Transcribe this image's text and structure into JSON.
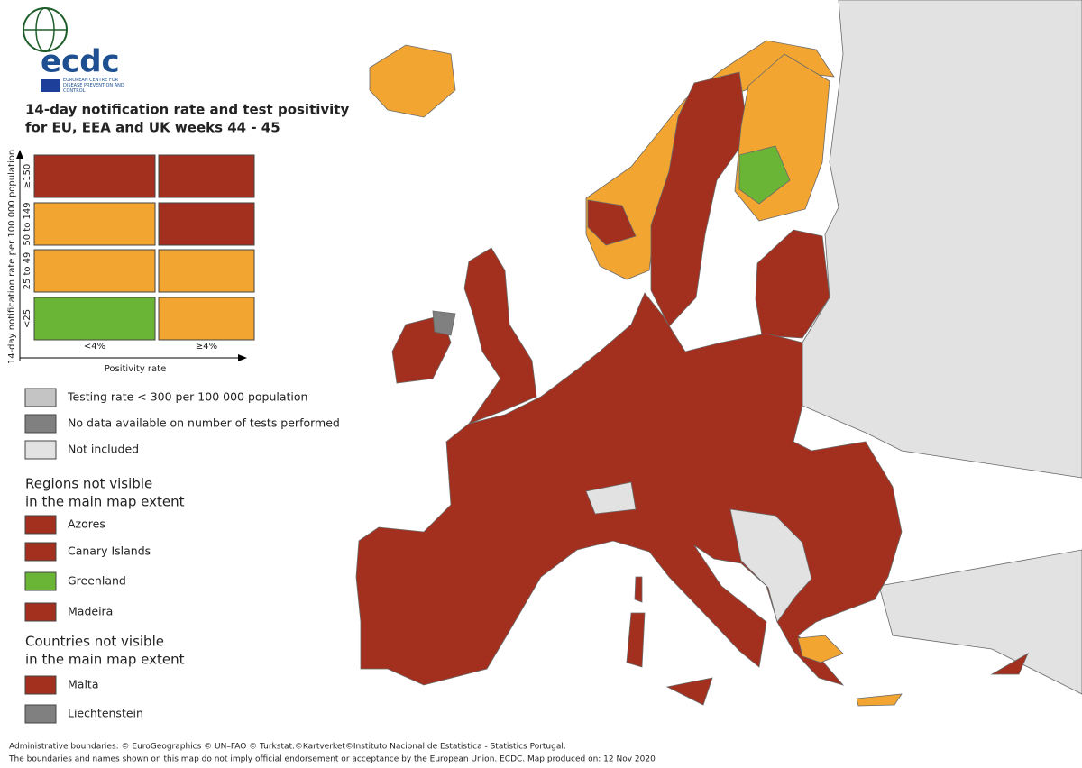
{
  "logo": {
    "text": "ecdc",
    "subtitle": "EUROPEAN CENTRE FOR DISEASE PREVENTION AND CONTROL"
  },
  "title": [
    "14-day notification rate and test positivity",
    "for EU, EEA and UK weeks 44 - 45"
  ],
  "matrix": {
    "y_label": "14-day notification rate per 100 000 population",
    "rows": [
      "≥150",
      "50 to 149",
      "25 to 49",
      "<25"
    ],
    "columns": [
      "<4%",
      "≥4%"
    ],
    "x_label": "Positivity rate",
    "cells": [
      [
        "#a3301f",
        "#a3301f"
      ],
      [
        "#f2a531",
        "#a3301f"
      ],
      [
        "#f2a531",
        "#f2a531"
      ],
      [
        "#6ab535",
        "#f2a531"
      ]
    ]
  },
  "legend": [
    {
      "label": "Testing rate < 300 per 100 000 population",
      "color": "#c4c4c4"
    },
    {
      "label": "No data available on number of tests performed",
      "color": "#808080"
    },
    {
      "label": "Not included",
      "color": "#e2e2e2"
    }
  ],
  "regions": {
    "heading": [
      "Regions not visible",
      "in the main map extent"
    ],
    "items": [
      {
        "label": "Azores",
        "color": "#a3301f"
      },
      {
        "label": "Canary Islands",
        "color": "#a3301f"
      },
      {
        "label": "Greenland",
        "color": "#6ab535"
      },
      {
        "label": "Madeira",
        "color": "#a3301f"
      }
    ]
  },
  "countries": {
    "heading": [
      "Countries not visible",
      "in the main map extent"
    ],
    "items": [
      {
        "label": "Malta",
        "color": "#a3301f"
      },
      {
        "label": "Liechtenstein",
        "color": "#808080"
      }
    ]
  },
  "footer": [
    "Administrative boundaries: © EuroGeographics © UN–FAO © Turkstat.©Kartverket©Instituto Nacional de Estatistica - Statistics Portugal.",
    "The boundaries and names shown on this map do not imply official endorsement or acceptance by the European Union. ECDC. Map produced on: 12 Nov 2020"
  ]
}
